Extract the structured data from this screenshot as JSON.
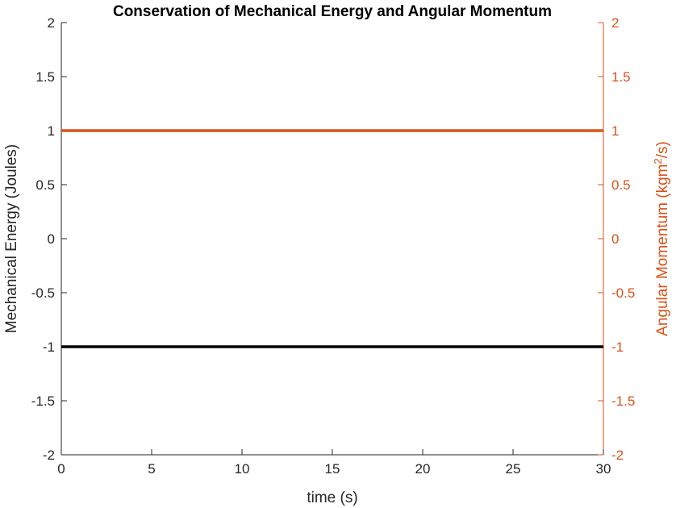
{
  "chart_data": {
    "type": "line",
    "title": "Conservation of Mechanical Energy and Angular Momentum",
    "xlabel": "time (s)",
    "ylabel_left": "Mechanical Energy (Joules)",
    "ylabel_right_prefix": "Angular Momentum (kgm",
    "ylabel_right_sup": "2",
    "ylabel_right_suffix": "/s)",
    "xlim": [
      0,
      30
    ],
    "ylim_left": [
      -2,
      2
    ],
    "ylim_right": [
      -2,
      2
    ],
    "x_ticks": [
      "0",
      "5",
      "10",
      "15",
      "20",
      "25",
      "30"
    ],
    "y_ticks_left": [
      "2",
      "1.5",
      "1",
      "0.5",
      "0",
      "-0.5",
      "-1",
      "-1.5",
      "-2"
    ],
    "y_ticks_right": [
      "2",
      "1.5",
      "1",
      "0.5",
      "0",
      "-0.5",
      "-1",
      "-1.5",
      "-2"
    ],
    "grid": false,
    "series": [
      {
        "axis": "left",
        "color": "#000000",
        "x": [
          0,
          30
        ],
        "y": [
          -1,
          -1
        ]
      },
      {
        "axis": "right",
        "color": "#D95319",
        "x": [
          0,
          30
        ],
        "y": [
          1,
          1
        ]
      }
    ],
    "colors": {
      "left_axis": "#262626",
      "right_axis": "#D95319"
    }
  }
}
